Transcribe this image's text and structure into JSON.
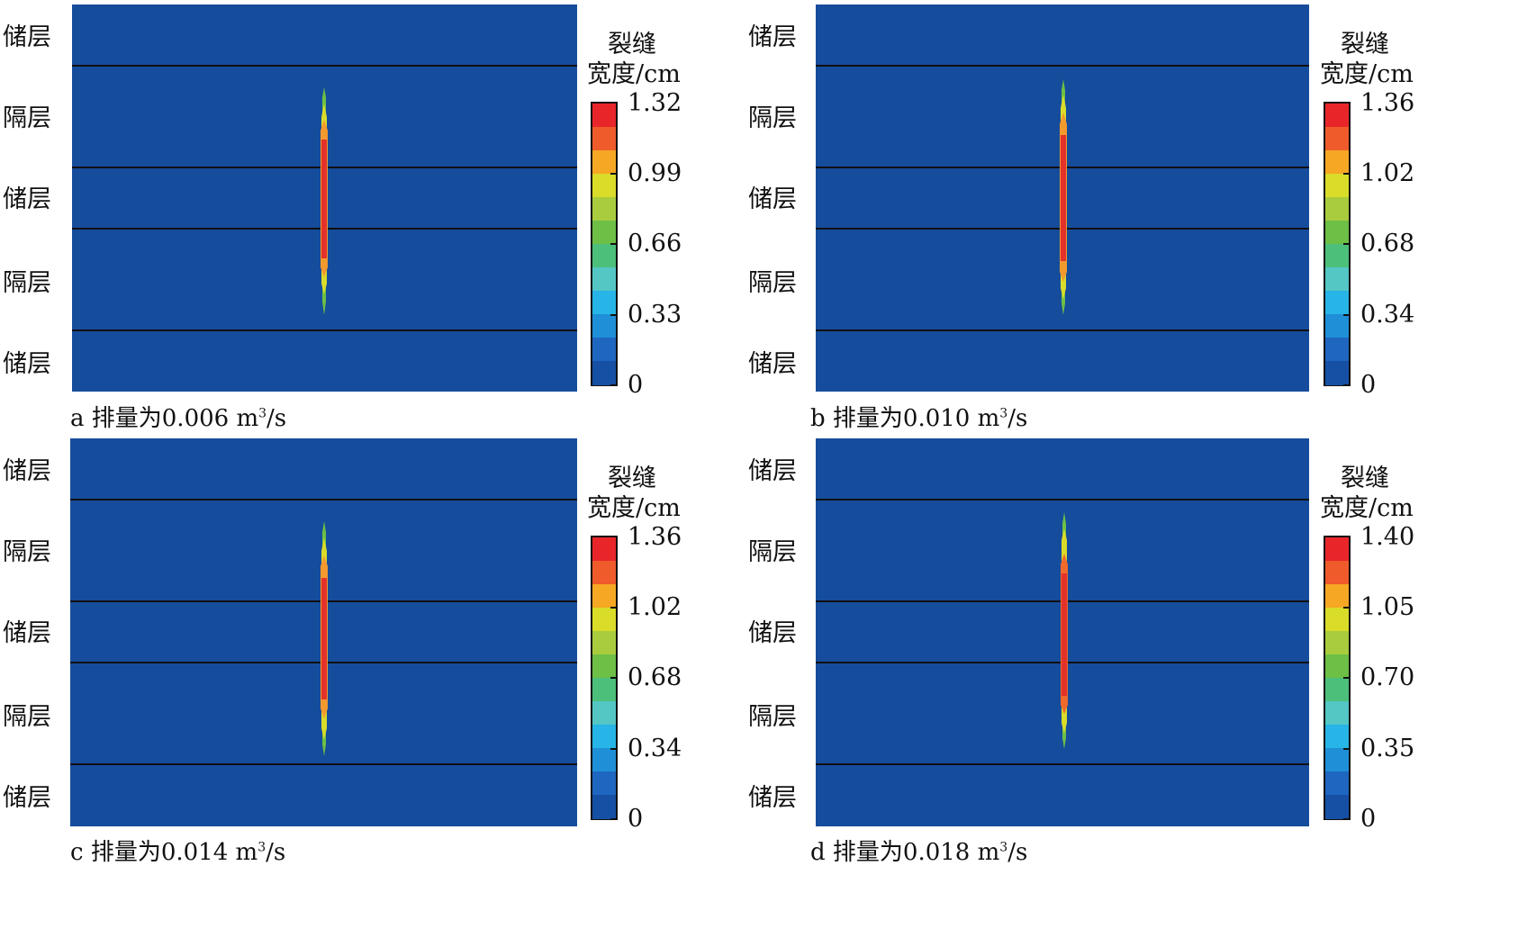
{
  "layer_names": {
    "reservoir": "储层",
    "barrier": "隔层"
  },
  "layer_sequence": [
    "reservoir",
    "barrier",
    "reservoir",
    "barrier",
    "reservoir"
  ],
  "colorbar": {
    "title_line1": "裂缝",
    "title_line2": "宽度/cm",
    "colors": [
      "#e8262a",
      "#ef5b2a",
      "#f6a723",
      "#dadc2a",
      "#a9cc3e",
      "#6dbf46",
      "#4cbf7a",
      "#54c6c4",
      "#27b4e6",
      "#1f8fd8",
      "#1e66c0",
      "#1650a5"
    ]
  },
  "field_color": "#164c9c",
  "panels": [
    {
      "id": "a",
      "caption_prefix": "a 排量为0.006 m",
      "caption_sup": "3",
      "caption_suffix": "/s",
      "ticks": [
        "1.32",
        "0.99",
        "0.66",
        "0.33",
        "0"
      ]
    },
    {
      "id": "b",
      "caption_prefix": "b 排量为0.010 m",
      "caption_sup": "3",
      "caption_suffix": "/s",
      "ticks": [
        "1.36",
        "1.02",
        "0.68",
        "0.34",
        "0"
      ]
    },
    {
      "id": "c",
      "caption_prefix": "c 排量为0.014 m",
      "caption_sup": "3",
      "caption_suffix": "/s",
      "ticks": [
        "1.36",
        "1.02",
        "0.68",
        "0.34",
        "0"
      ]
    },
    {
      "id": "d",
      "caption_prefix": "d 排量为0.018 m",
      "caption_sup": "3",
      "caption_suffix": "/s",
      "ticks": [
        "1.40",
        "1.05",
        "0.70",
        "0.35",
        "0"
      ]
    }
  ]
}
